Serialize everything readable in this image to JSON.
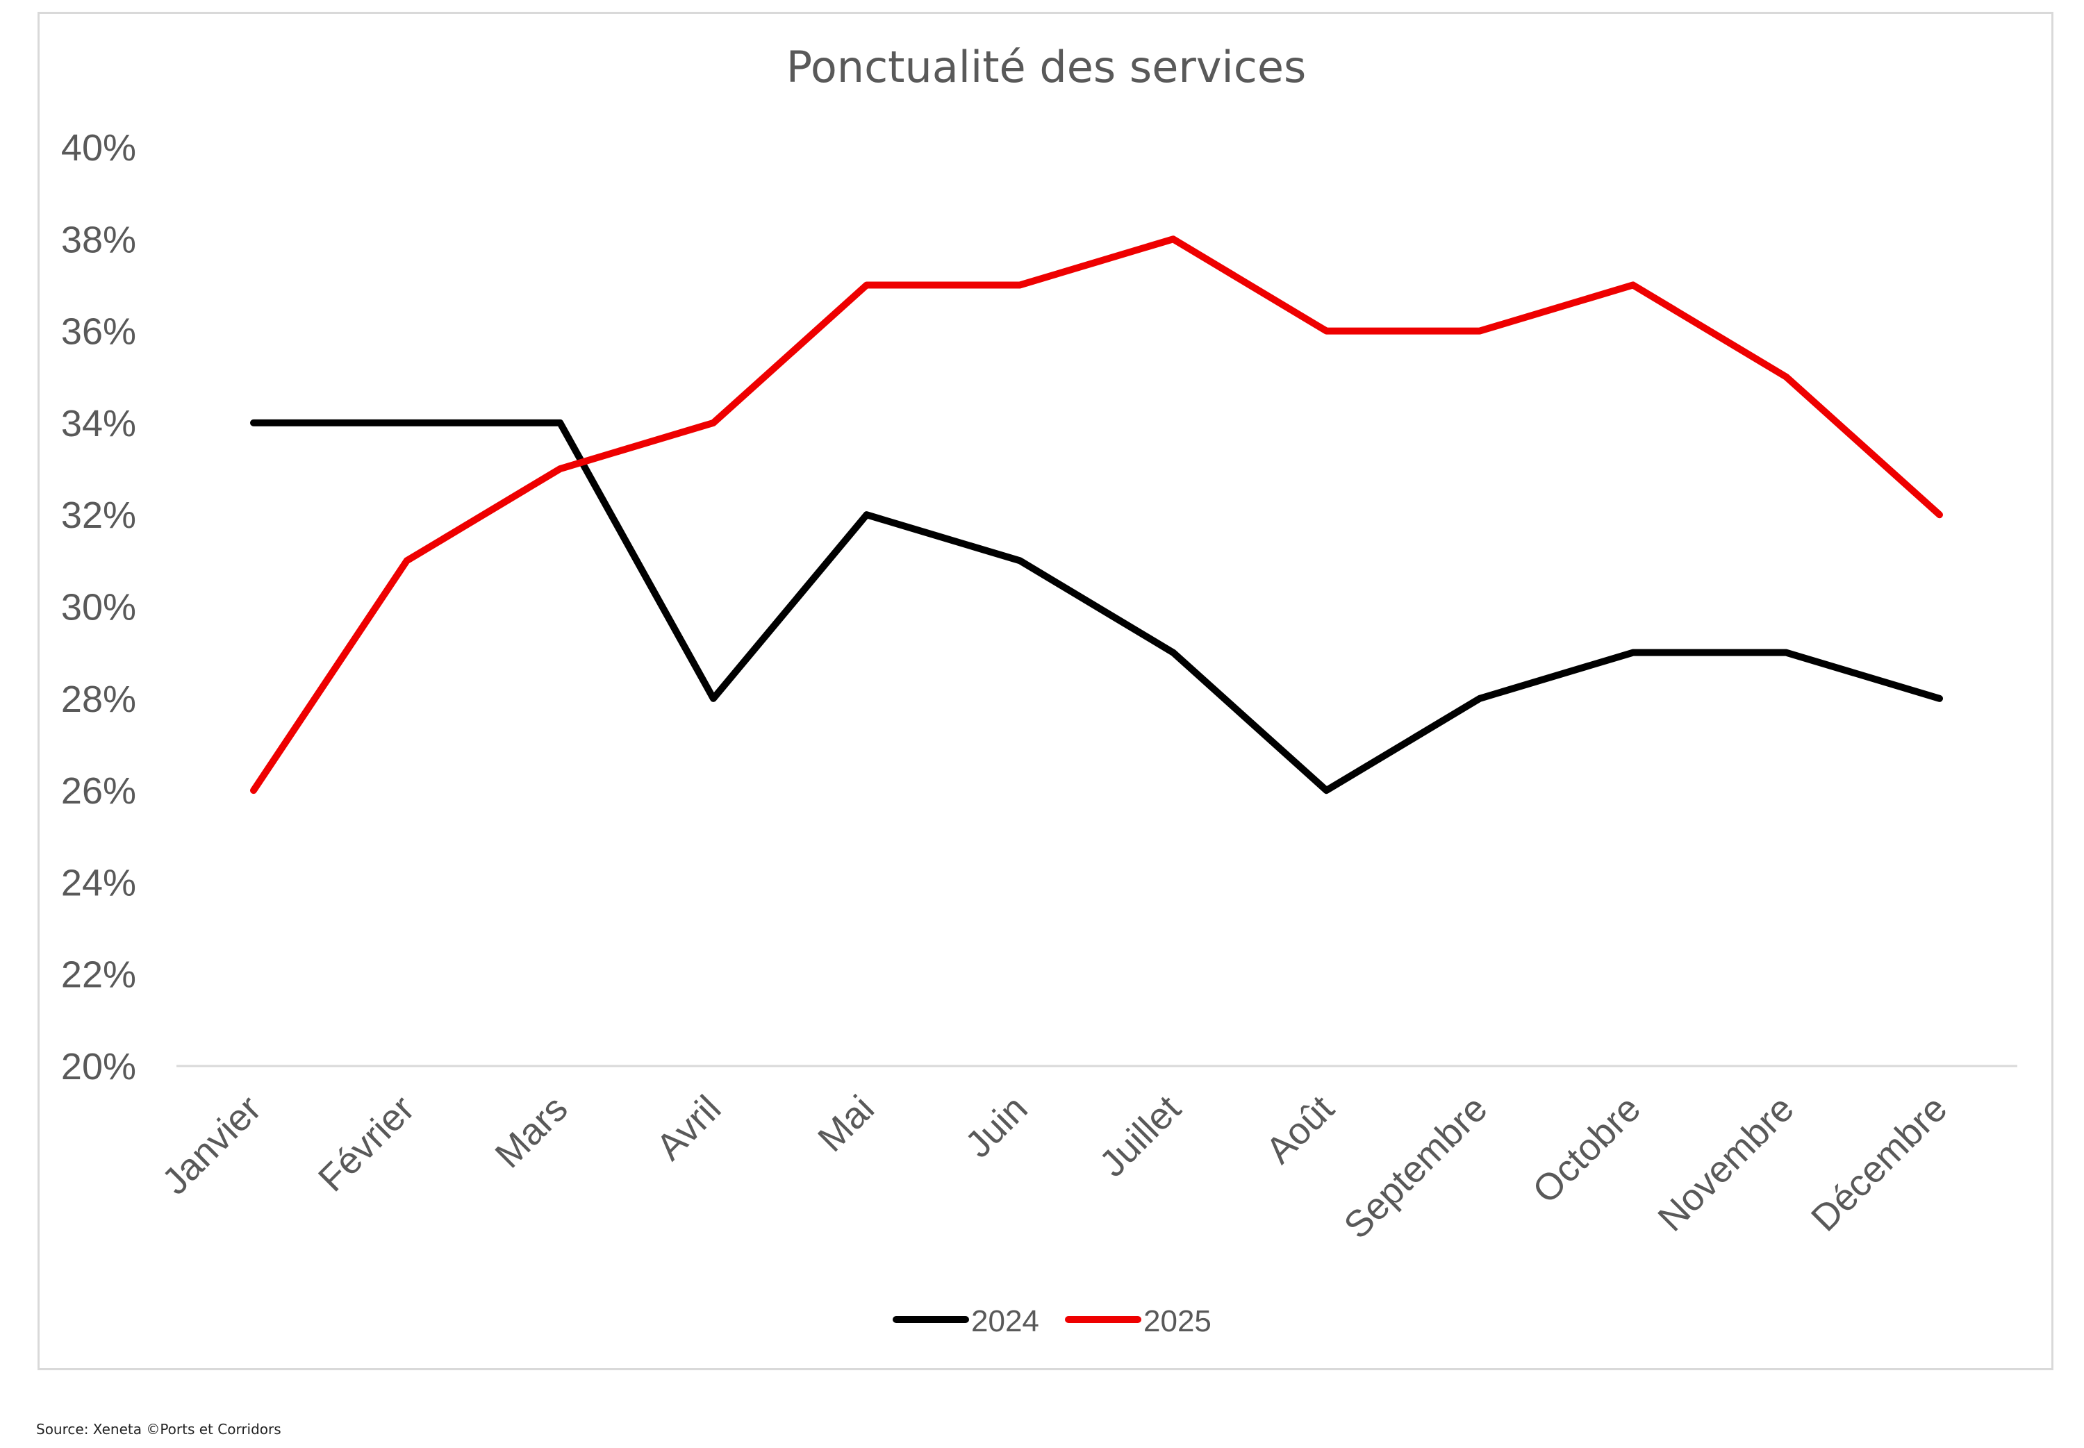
{
  "chart_data": {
    "type": "line",
    "title": "Ponctualité des services",
    "xlabel": "",
    "ylabel": "",
    "categories": [
      "Janvier",
      "Février",
      "Mars",
      "Avril",
      "Mai",
      "Juin",
      "Juillet",
      "Août",
      "Septembre",
      "Octobre",
      "Novembre",
      "Décembre"
    ],
    "series": [
      {
        "name": "2024",
        "color": "#000000",
        "values": [
          34,
          34,
          34,
          28,
          32,
          31,
          29,
          26,
          28,
          29,
          29,
          28
        ]
      },
      {
        "name": "2025",
        "color": "#ee0000",
        "values": [
          26,
          31,
          33,
          34,
          37,
          37,
          38,
          36,
          36,
          37,
          35,
          32
        ]
      }
    ],
    "ylim": [
      20,
      40
    ],
    "yticks": [
      20,
      22,
      24,
      26,
      28,
      30,
      32,
      34,
      36,
      38,
      40
    ],
    "ytick_suffix": "%",
    "grid": false,
    "legend_position": "bottom"
  },
  "source": "Source: Xeneta ©Ports et Corridors"
}
